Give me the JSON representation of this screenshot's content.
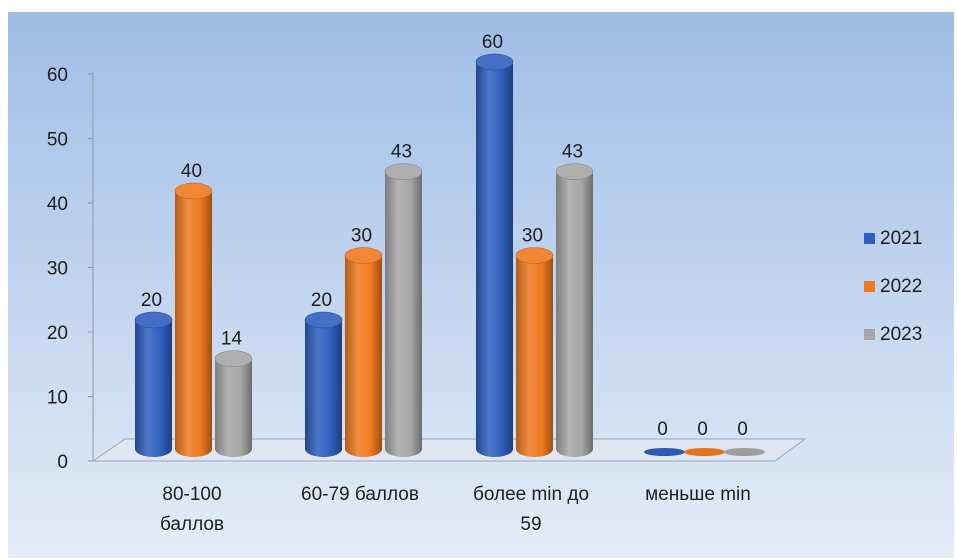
{
  "chart_data": {
    "type": "bar",
    "style": "3d-cylinder",
    "categories": [
      [
        "80-100",
        "баллов"
      ],
      [
        "60-79 баллов"
      ],
      [
        "более min до",
        "59"
      ],
      [
        "меньше min"
      ]
    ],
    "series": [
      {
        "name": "2021",
        "color": "#2f5fbf",
        "values": [
          20,
          20,
          60,
          0
        ]
      },
      {
        "name": "2022",
        "color": "#ef7a1f",
        "values": [
          40,
          30,
          30,
          0
        ]
      },
      {
        "name": "2023",
        "color": "#a6a6a6",
        "values": [
          14,
          43,
          43,
          0
        ]
      }
    ],
    "ylim": [
      0,
      60
    ],
    "yticks": [
      "0",
      "10",
      "20",
      "30",
      "40",
      "50",
      "60"
    ],
    "legend_position": "right",
    "grid": false
  },
  "colors": {
    "background_top": "#9fbde6",
    "background_bottom": "#e4ecf8"
  }
}
